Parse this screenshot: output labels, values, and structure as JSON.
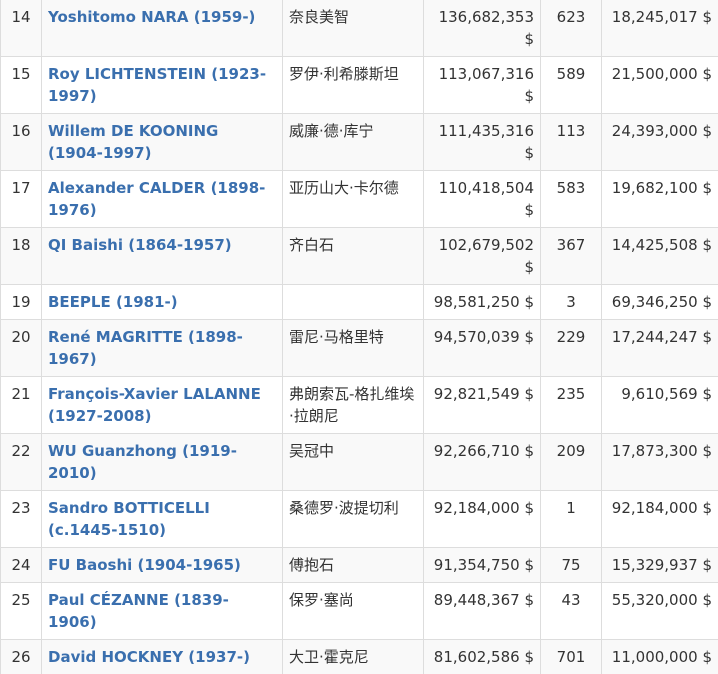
{
  "rows": [
    {
      "rank": "14",
      "artist": "Yoshitomo NARA (1959-)",
      "chinese_name": "奈良美智",
      "turnover": "136,682,353 $",
      "lots": "623",
      "top_price": "18,245,017 $"
    },
    {
      "rank": "15",
      "artist": "Roy LICHTENSTEIN (1923-1997)",
      "chinese_name": "罗伊·利希滕斯坦",
      "turnover": "113,067,316 $",
      "lots": "589",
      "top_price": "21,500,000 $"
    },
    {
      "rank": "16",
      "artist": "Willem DE KOONING (1904-1997)",
      "chinese_name": "威廉·德·库宁",
      "turnover": "111,435,316 $",
      "lots": "113",
      "top_price": "24,393,000 $"
    },
    {
      "rank": "17",
      "artist": "Alexander CALDER (1898-1976)",
      "chinese_name": "亚历山大·卡尔德",
      "turnover": "110,418,504 $",
      "lots": "583",
      "top_price": "19,682,100 $"
    },
    {
      "rank": "18",
      "artist": "QI Baishi (1864-1957)",
      "chinese_name": "齐白石",
      "turnover": "102,679,502 $",
      "lots": "367",
      "top_price": "14,425,508 $"
    },
    {
      "rank": "19",
      "artist": "BEEPLE (1981-)",
      "chinese_name": "",
      "turnover": "98,581,250 $",
      "lots": "3",
      "top_price": "69,346,250 $"
    },
    {
      "rank": "20",
      "artist": "René MAGRITTE (1898-1967)",
      "chinese_name": "雷尼·马格里特",
      "turnover": "94,570,039 $",
      "lots": "229",
      "top_price": "17,244,247 $"
    },
    {
      "rank": "21",
      "artist": "François-Xavier LALANNE (1927-2008)",
      "chinese_name": "弗朗索瓦-格扎维埃·拉朗尼",
      "turnover": "92,821,549 $",
      "lots": "235",
      "top_price": "9,610,569 $"
    },
    {
      "rank": "22",
      "artist": "WU Guanzhong (1919-2010)",
      "chinese_name": "吴冠中",
      "turnover": "92,266,710 $",
      "lots": "209",
      "top_price": "17,873,300 $"
    },
    {
      "rank": "23",
      "artist": "Sandro BOTTICELLI (c.1445-1510)",
      "chinese_name": "桑德罗·波提切利",
      "turnover": "92,184,000 $",
      "lots": "1",
      "top_price": "92,184,000 $"
    },
    {
      "rank": "24",
      "artist": "FU Baoshi (1904-1965)",
      "chinese_name": "傅抱石",
      "turnover": "91,354,750 $",
      "lots": "75",
      "top_price": "15,329,937 $"
    },
    {
      "rank": "25",
      "artist": "Paul CÉZANNE (1839-1906)",
      "chinese_name": "保罗·塞尚",
      "turnover": "89,448,367 $",
      "lots": "43",
      "top_price": "55,320,000 $"
    },
    {
      "rank": "26",
      "artist": "David HOCKNEY (1937-)",
      "chinese_name": "大卫·霍克尼",
      "turnover": "81,602,586 $",
      "lots": "701",
      "top_price": "11,000,000 $"
    }
  ],
  "colors": {
    "link": "#3a6fae",
    "stripe": "#f9f9f9",
    "border": "#dddddd"
  }
}
